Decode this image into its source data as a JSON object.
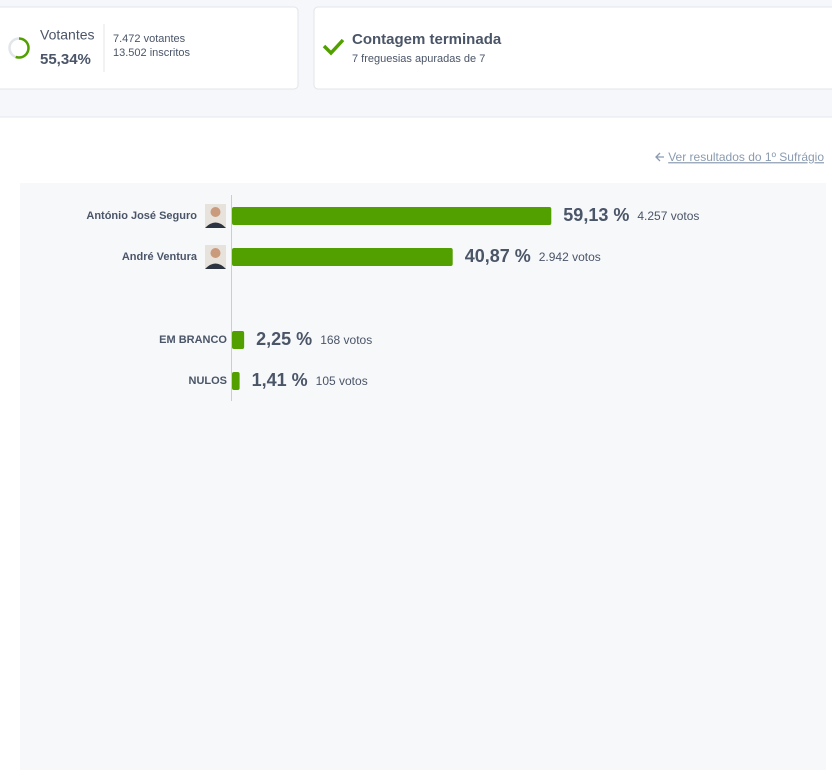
{
  "turnout": {
    "label": "Votantes",
    "value": 55.34,
    "value_label": "55,34%",
    "voters": "7.472 votantes",
    "registered": "13.502 inscritos"
  },
  "count": {
    "title": "Contagem terminada",
    "subtitle": "7 freguesias apuradas de 7"
  },
  "link": "Ver resultados do 1º Sufrágio",
  "chart_data": {
    "type": "bar",
    "orientation": "horizontal",
    "categories": [
      "António José Seguro",
      "André Ventura",
      "EM BRANCO",
      "NULOS"
    ],
    "values": [
      59.13,
      40.87,
      2.25,
      1.41
    ],
    "value_labels": [
      "59,13 %",
      "40,87 %",
      "2,25 %",
      "1,41 %"
    ],
    "votes_labels": [
      "4.257 votos",
      "2.942 votos",
      "168 votos",
      "105 votos"
    ],
    "color": "#52a000",
    "xlim": [
      0,
      100
    ]
  }
}
